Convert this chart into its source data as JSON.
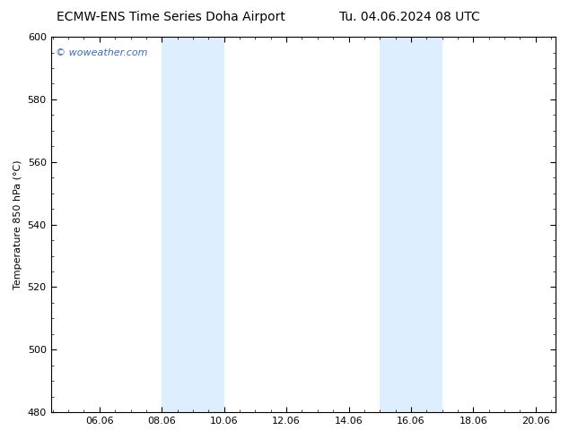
{
  "title_left": "ECMW-ENS Time Series Doha Airport",
  "title_right": "Tu. 04.06.2024 08 UTC",
  "ylabel": "Temperature 850 hPa (°C)",
  "ylim": [
    480,
    600
  ],
  "yticks": [
    480,
    500,
    520,
    540,
    560,
    580,
    600
  ],
  "xlim_start": 4.5,
  "xlim_end": 20.7,
  "xticks": [
    6.06,
    8.06,
    10.06,
    12.06,
    14.06,
    16.06,
    18.06,
    20.06
  ],
  "xtick_labels": [
    "06.06",
    "08.06",
    "10.06",
    "12.06",
    "14.06",
    "16.06",
    "18.06",
    "20.06"
  ],
  "shaded_bands": [
    {
      "x_start": 8.06,
      "x_end": 10.06
    },
    {
      "x_start": 15.06,
      "x_end": 17.06
    }
  ],
  "shaded_color": "#ddeeff",
  "background_color": "#ffffff",
  "watermark_text": "© woweather.com",
  "watermark_color": "#4169b0",
  "watermark_fontsize": 8,
  "title_fontsize": 10,
  "tick_fontsize": 8,
  "ylabel_fontsize": 8
}
